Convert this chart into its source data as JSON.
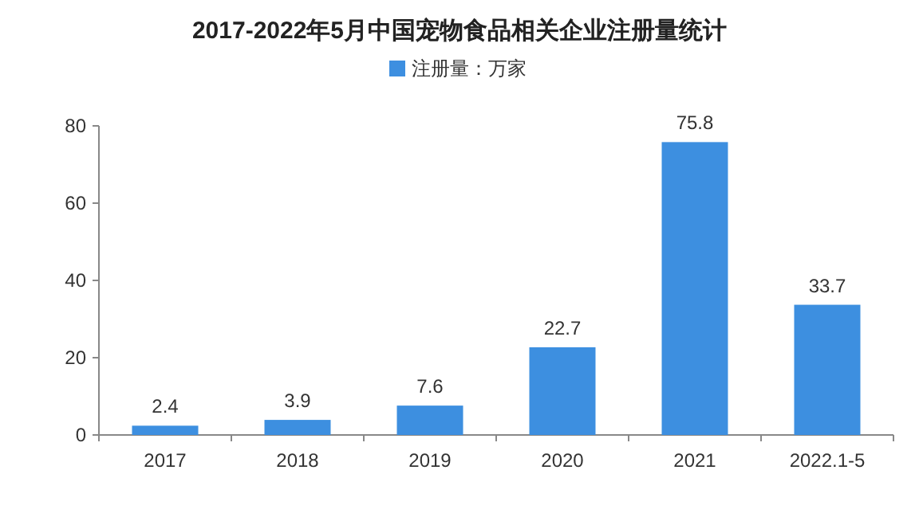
{
  "chart_data": {
    "type": "bar",
    "title": "2017-2022年5月中国宠物食品相关企业注册量统计",
    "categories": [
      "2017",
      "2018",
      "2019",
      "2020",
      "2021",
      "2022.1-5"
    ],
    "series": [
      {
        "name": "注册量：万家",
        "color": "#3d8fe0",
        "values": [
          2.4,
          3.9,
          7.6,
          22.7,
          75.8,
          33.7
        ]
      }
    ],
    "ylim": [
      0,
      80
    ],
    "yticks": [
      0,
      20,
      40,
      60,
      80
    ],
    "data_labels": true,
    "legend": "top"
  }
}
